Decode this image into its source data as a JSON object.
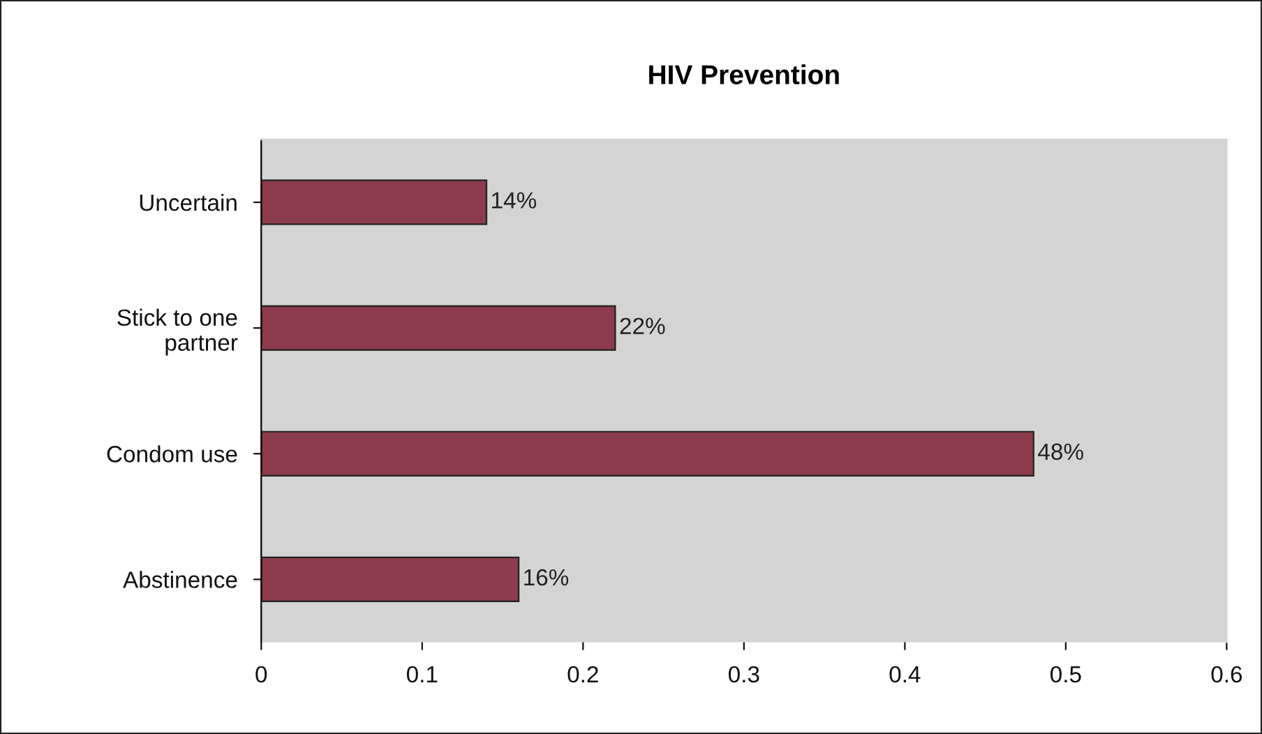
{
  "chart_data": {
    "type": "bar",
    "title": "HIV Prevention",
    "orientation": "horizontal",
    "categories": [
      "Uncertain",
      "Stick to one partner",
      "Condom use",
      "Abstinence"
    ],
    "values": [
      0.14,
      0.22,
      0.48,
      0.16
    ],
    "value_labels": [
      "14%",
      "22%",
      "48%",
      "16%"
    ],
    "color": "#8c3b4c",
    "xlim": [
      0,
      0.6
    ],
    "xticks": [
      0,
      0.1,
      0.2,
      0.3,
      0.4,
      0.5,
      0.6
    ],
    "grid": false
  }
}
